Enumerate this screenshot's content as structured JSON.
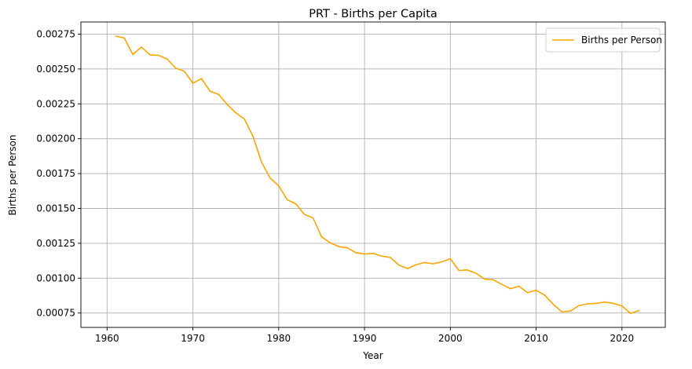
{
  "chart_data": {
    "type": "line",
    "title": "PRT - Births per Capita",
    "xlabel": "Year",
    "ylabel": "Births per Person",
    "xlim": [
      1956.95,
      2025.05
    ],
    "ylim": [
      0.000647,
      0.002837
    ],
    "xticks": [
      1960,
      1970,
      1980,
      1990,
      2000,
      2010,
      2020
    ],
    "yticks": [
      0.00075,
      0.001,
      0.00125,
      0.0015,
      0.00175,
      0.002,
      0.00225,
      0.0025,
      0.00275
    ],
    "ytick_labels": [
      "0.00075",
      "0.00100",
      "0.00125",
      "0.00150",
      "0.00175",
      "0.00200",
      "0.00225",
      "0.00250",
      "0.00275"
    ],
    "grid": true,
    "legend_position": "top-right",
    "series": [
      {
        "name": "Births per Person",
        "color": "#ffa500",
        "x": [
          1961,
          1962,
          1963,
          1964,
          1965,
          1966,
          1967,
          1968,
          1969,
          1970,
          1971,
          1972,
          1973,
          1974,
          1975,
          1976,
          1977,
          1978,
          1979,
          1980,
          1981,
          1982,
          1983,
          1984,
          1985,
          1986,
          1987,
          1988,
          1989,
          1990,
          1991,
          1992,
          1993,
          1994,
          1995,
          1996,
          1997,
          1998,
          1999,
          2000,
          2001,
          2002,
          2003,
          2004,
          2005,
          2006,
          2007,
          2008,
          2009,
          2010,
          2011,
          2012,
          2013,
          2014,
          2015,
          2016,
          2017,
          2018,
          2019,
          2020,
          2021,
          2022
        ],
        "y": [
          0.002735,
          0.002723,
          0.002604,
          0.002657,
          0.002601,
          0.002598,
          0.002571,
          0.002506,
          0.002484,
          0.002398,
          0.002431,
          0.002341,
          0.002318,
          0.002245,
          0.002186,
          0.002141,
          0.002018,
          0.001832,
          0.001718,
          0.001662,
          0.001562,
          0.001533,
          0.001457,
          0.001432,
          0.001296,
          0.001254,
          0.001226,
          0.001218,
          0.001182,
          0.001173,
          0.001178,
          0.001158,
          0.001149,
          0.001094,
          0.001069,
          0.001096,
          0.001112,
          0.001103,
          0.001117,
          0.001139,
          0.001055,
          0.001059,
          0.001035,
          0.000993,
          0.000989,
          0.000955,
          0.000925,
          0.000942,
          0.000896,
          0.000913,
          0.000878,
          0.000812,
          0.000759,
          0.000764,
          0.000804,
          0.000816,
          0.000819,
          0.000829,
          0.000819,
          0.000801,
          0.000747,
          0.000769
        ]
      }
    ]
  }
}
